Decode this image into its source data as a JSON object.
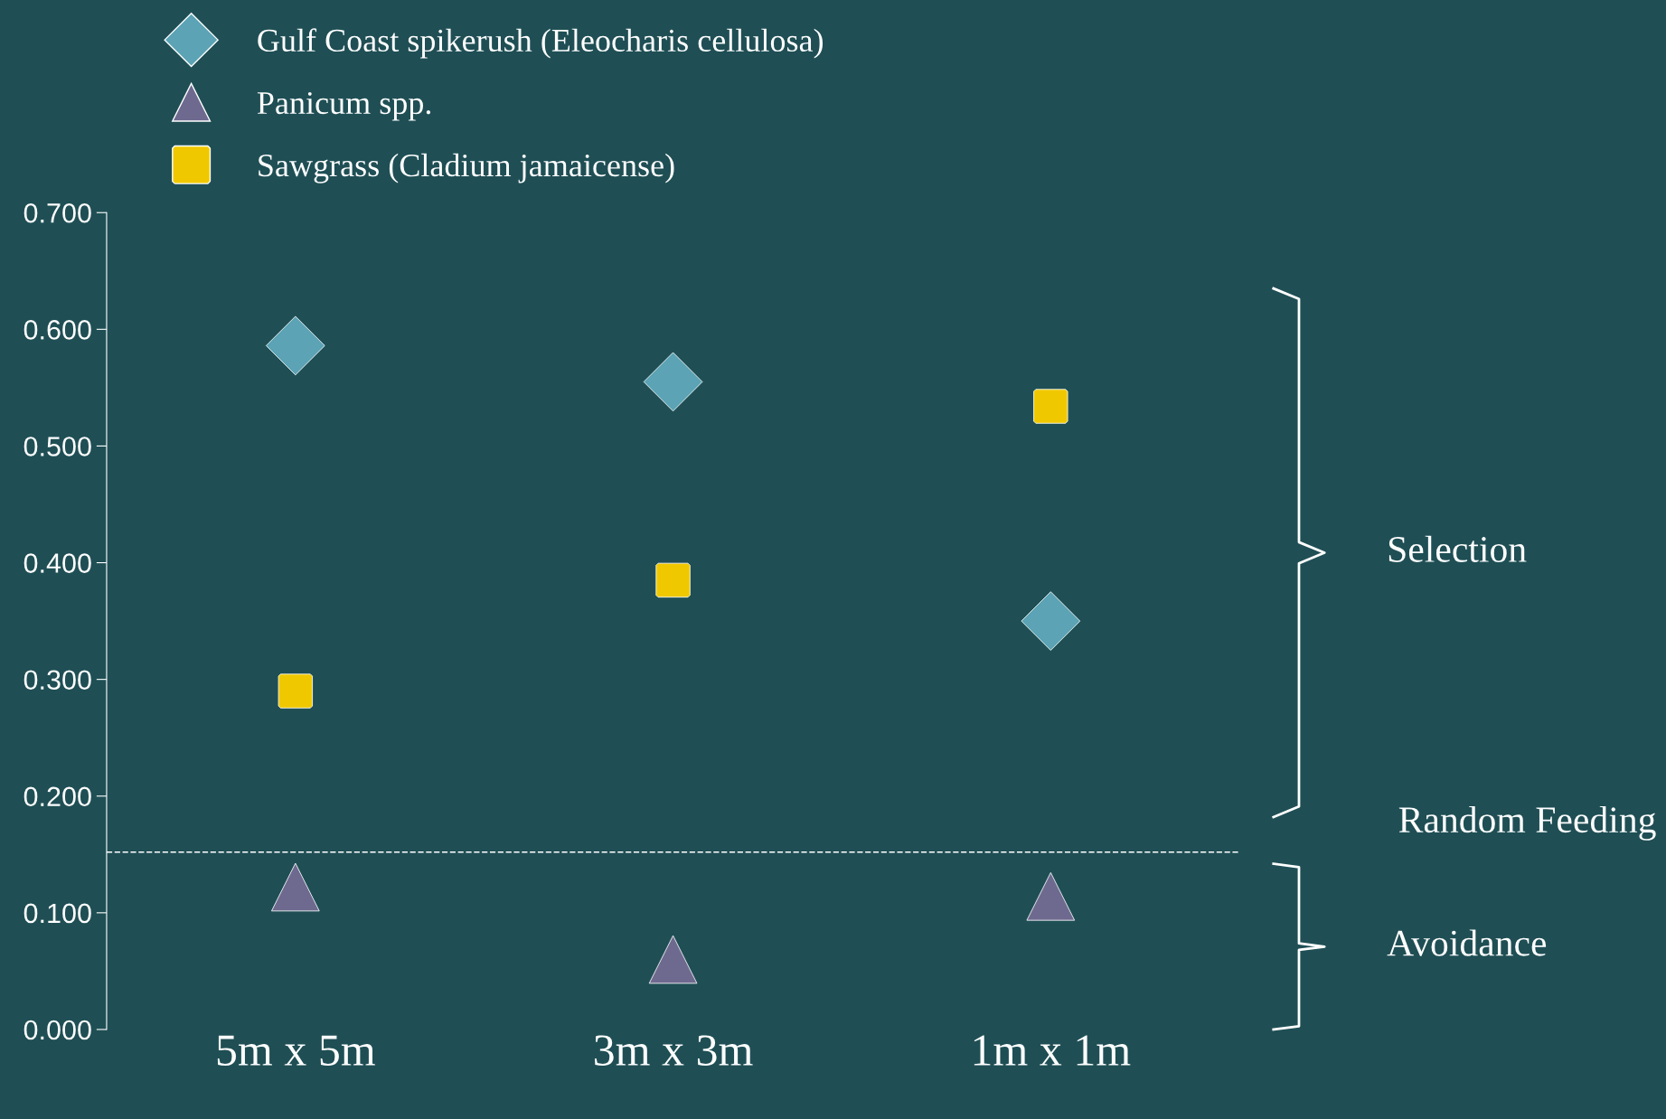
{
  "chart_data": {
    "type": "scatter",
    "categories": [
      "5m x 5m",
      "3m x 3m",
      "1m x 1m"
    ],
    "series": [
      {
        "name": "Gulf Coast spikerush (Eleocharis cellulosa)",
        "color": "#5ba3b5",
        "marker": "diamond",
        "values": [
          0.586,
          0.555,
          0.35
        ]
      },
      {
        "name": "Panicum spp.",
        "color": "#6e6a8f",
        "marker": "triangle",
        "values": [
          0.122,
          0.06,
          0.114
        ]
      },
      {
        "name": "Sawgrass (Cladium jamaicense)",
        "color": "#f0c800",
        "marker": "square",
        "values": [
          0.29,
          0.385,
          0.534
        ]
      }
    ],
    "ylim": [
      0,
      0.7
    ],
    "yticks": [
      {
        "value": 0,
        "label": "0.000"
      },
      {
        "value": 0.1,
        "label": "0.100"
      },
      {
        "value": 0.2,
        "label": "0.200"
      },
      {
        "value": 0.3,
        "label": "0.300"
      },
      {
        "value": 0.4,
        "label": "0.400"
      },
      {
        "value": 0.5,
        "label": "0.500"
      },
      {
        "value": 0.6,
        "label": "0.600"
      },
      {
        "value": 0.7,
        "label": "0.700"
      }
    ],
    "ref_lines": [
      {
        "axis": "y",
        "value": 0.152,
        "color": "#ffffff",
        "line_style": "dashed"
      }
    ],
    "annotations": [
      "Selection",
      "Random Feeding",
      "Avoidance"
    ],
    "grid": false,
    "legend": "top left"
  }
}
